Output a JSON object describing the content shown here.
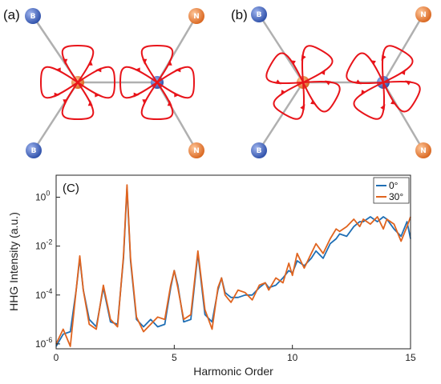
{
  "panels": [
    {
      "label": "(a)",
      "orientation_deg": 0
    },
    {
      "label": "(b)",
      "orientation_deg": 30
    }
  ],
  "atoms": {
    "boron_symbol": "B",
    "nitrogen_symbol": "N",
    "boron_color": "#3b5fc0",
    "nitrogen_color": "#e0722c",
    "bond_color": "#b0b0b0",
    "loop_color": "#e8141a"
  },
  "chart_data": {
    "type": "line",
    "panel_label": "(C)",
    "xlabel": "Harmonic Order",
    "ylabel": "HHG Intensity (a.u.)",
    "xlim": [
      0,
      15
    ],
    "ylim_log10": [
      -6.2,
      0.9
    ],
    "yscale": "log",
    "x_ticks": [
      0,
      5,
      10,
      15
    ],
    "y_ticks": [
      {
        "base": "10",
        "exp": "0"
      },
      {
        "base": "10",
        "exp": "-2"
      },
      {
        "base": "10",
        "exp": "-4"
      },
      {
        "base": "10",
        "exp": "-6"
      }
    ],
    "legend_position": "top-right",
    "series": [
      {
        "name": "0°",
        "color": "#1f6fb5",
        "x": [
          0,
          0.3,
          0.6,
          0.85,
          1,
          1.15,
          1.4,
          1.7,
          2,
          2.3,
          2.6,
          2.85,
          3,
          3.15,
          3.4,
          3.7,
          4,
          4.3,
          4.6,
          4.85,
          5,
          5.15,
          5.4,
          5.7,
          6,
          6.3,
          6.6,
          6.85,
          7,
          7.15,
          7.4,
          7.7,
          8,
          8.3,
          8.6,
          8.85,
          9,
          9.3,
          9.6,
          9.85,
          10,
          10.2,
          10.5,
          10.8,
          11,
          11.3,
          11.6,
          11.85,
          12,
          12.3,
          12.6,
          12.85,
          13,
          13.3,
          13.6,
          13.85,
          14,
          14.3,
          14.6,
          14.85,
          15
        ],
        "y_log10": [
          -6.1,
          -5.6,
          -5.5,
          -3.8,
          -2.5,
          -3.8,
          -5.0,
          -5.3,
          -3.7,
          -5.1,
          -5.2,
          -2.5,
          0.4,
          -2.6,
          -5.0,
          -5.3,
          -5.0,
          -5.3,
          -5.2,
          -3.7,
          -3.0,
          -3.6,
          -5.1,
          -5.0,
          -2.3,
          -4.8,
          -5.1,
          -3.8,
          -3.3,
          -3.9,
          -4.1,
          -4.1,
          -4.0,
          -4.0,
          -3.7,
          -3.5,
          -3.7,
          -3.6,
          -3.3,
          -3.0,
          -3.1,
          -2.6,
          -2.8,
          -2.5,
          -2.2,
          -2.5,
          -1.9,
          -1.7,
          -1.5,
          -1.6,
          -1.2,
          -1.0,
          -1.0,
          -0.8,
          -1.0,
          -0.8,
          -0.9,
          -1.3,
          -1.6,
          -1.0,
          -1.7
        ]
      },
      {
        "name": "30°",
        "color": "#e0641f",
        "x": [
          0,
          0.3,
          0.6,
          0.85,
          1,
          1.15,
          1.4,
          1.7,
          2,
          2.3,
          2.6,
          2.85,
          3,
          3.15,
          3.4,
          3.7,
          4,
          4.3,
          4.6,
          4.85,
          5,
          5.15,
          5.4,
          5.7,
          6,
          6.3,
          6.6,
          6.85,
          7,
          7.15,
          7.4,
          7.7,
          8,
          8.3,
          8.6,
          8.85,
          9,
          9.3,
          9.6,
          9.85,
          10,
          10.2,
          10.5,
          10.8,
          11,
          11.3,
          11.6,
          11.85,
          12,
          12.3,
          12.6,
          12.85,
          13,
          13.3,
          13.6,
          13.85,
          14,
          14.3,
          14.6,
          14.85,
          15
        ],
        "y_log10": [
          -6.0,
          -5.4,
          -6.1,
          -3.8,
          -2.4,
          -3.8,
          -5.2,
          -5.4,
          -3.6,
          -5.0,
          -5.3,
          -2.4,
          0.5,
          -2.5,
          -4.9,
          -5.5,
          -5.2,
          -4.9,
          -5.0,
          -3.6,
          -3.0,
          -3.7,
          -5.0,
          -4.8,
          -2.2,
          -4.6,
          -5.4,
          -3.7,
          -3.3,
          -4.0,
          -4.3,
          -3.8,
          -3.9,
          -4.2,
          -3.6,
          -3.5,
          -3.8,
          -3.3,
          -3.5,
          -2.7,
          -3.2,
          -2.3,
          -2.9,
          -2.3,
          -1.9,
          -2.3,
          -1.7,
          -1.3,
          -1.4,
          -1.2,
          -0.9,
          -1.2,
          -0.9,
          -1.1,
          -0.8,
          -1.3,
          -0.9,
          -1.1,
          -1.8,
          -1.2,
          -0.8
        ]
      }
    ]
  }
}
